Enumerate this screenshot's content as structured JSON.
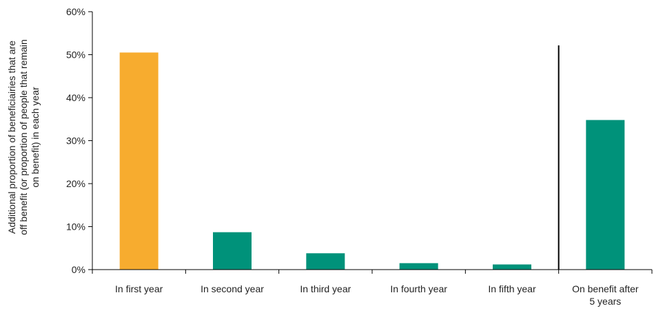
{
  "chart_data": {
    "type": "bar",
    "title": "",
    "xlabel": "",
    "ylabel_lines": [
      "Additional proportion of beneficiairies that are",
      "off benefit (or proportion of people that remain",
      "on benefit) in each year"
    ],
    "categories": [
      [
        "In first year"
      ],
      [
        "In second year"
      ],
      [
        "In third year"
      ],
      [
        "In fourth year"
      ],
      [
        "In fifth year"
      ],
      [
        "On benefit after",
        "5 years"
      ]
    ],
    "values": [
      0.505,
      0.087,
      0.038,
      0.015,
      0.012,
      0.348
    ],
    "bar_colors": [
      "#F7AC2F",
      "#00927A",
      "#00927A",
      "#00927A",
      "#00927A",
      "#00927A"
    ],
    "ylim": [
      0,
      0.6
    ],
    "yticks": [
      0,
      0.1,
      0.2,
      0.3,
      0.4,
      0.5,
      0.6
    ],
    "ytick_labels": [
      "0%",
      "10%",
      "20%",
      "30%",
      "40%",
      "50%",
      "60%"
    ],
    "separator_after_category": 4,
    "grid": false,
    "legend": "none"
  }
}
